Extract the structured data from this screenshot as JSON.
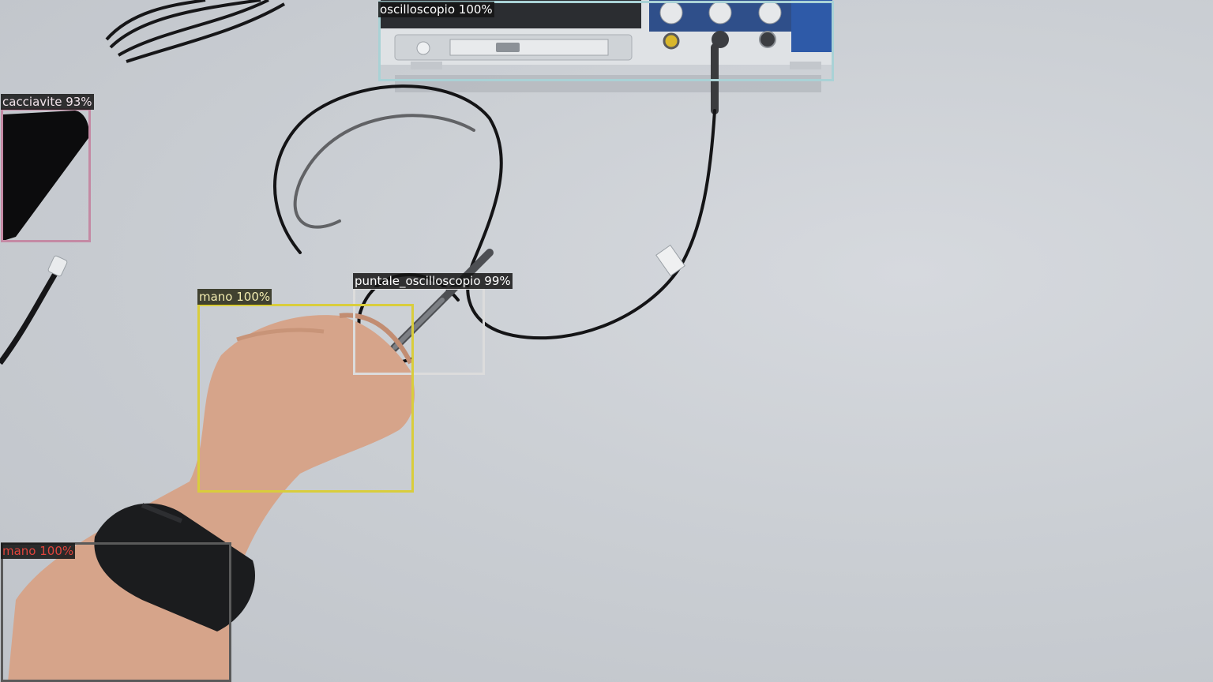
{
  "detections": [
    {
      "label": "oscilloscopio 100%",
      "color": "#a9d2d6"
    },
    {
      "label": "cacciavite 93%",
      "color": "#c48aa4"
    },
    {
      "label": "puntale_oscilloscopio 99%",
      "color": "#dcdcdc"
    },
    {
      "label": "mano 100%",
      "color": "#d9cd3c"
    },
    {
      "label": "mano 100%",
      "color": "#5a5a5a"
    }
  ]
}
